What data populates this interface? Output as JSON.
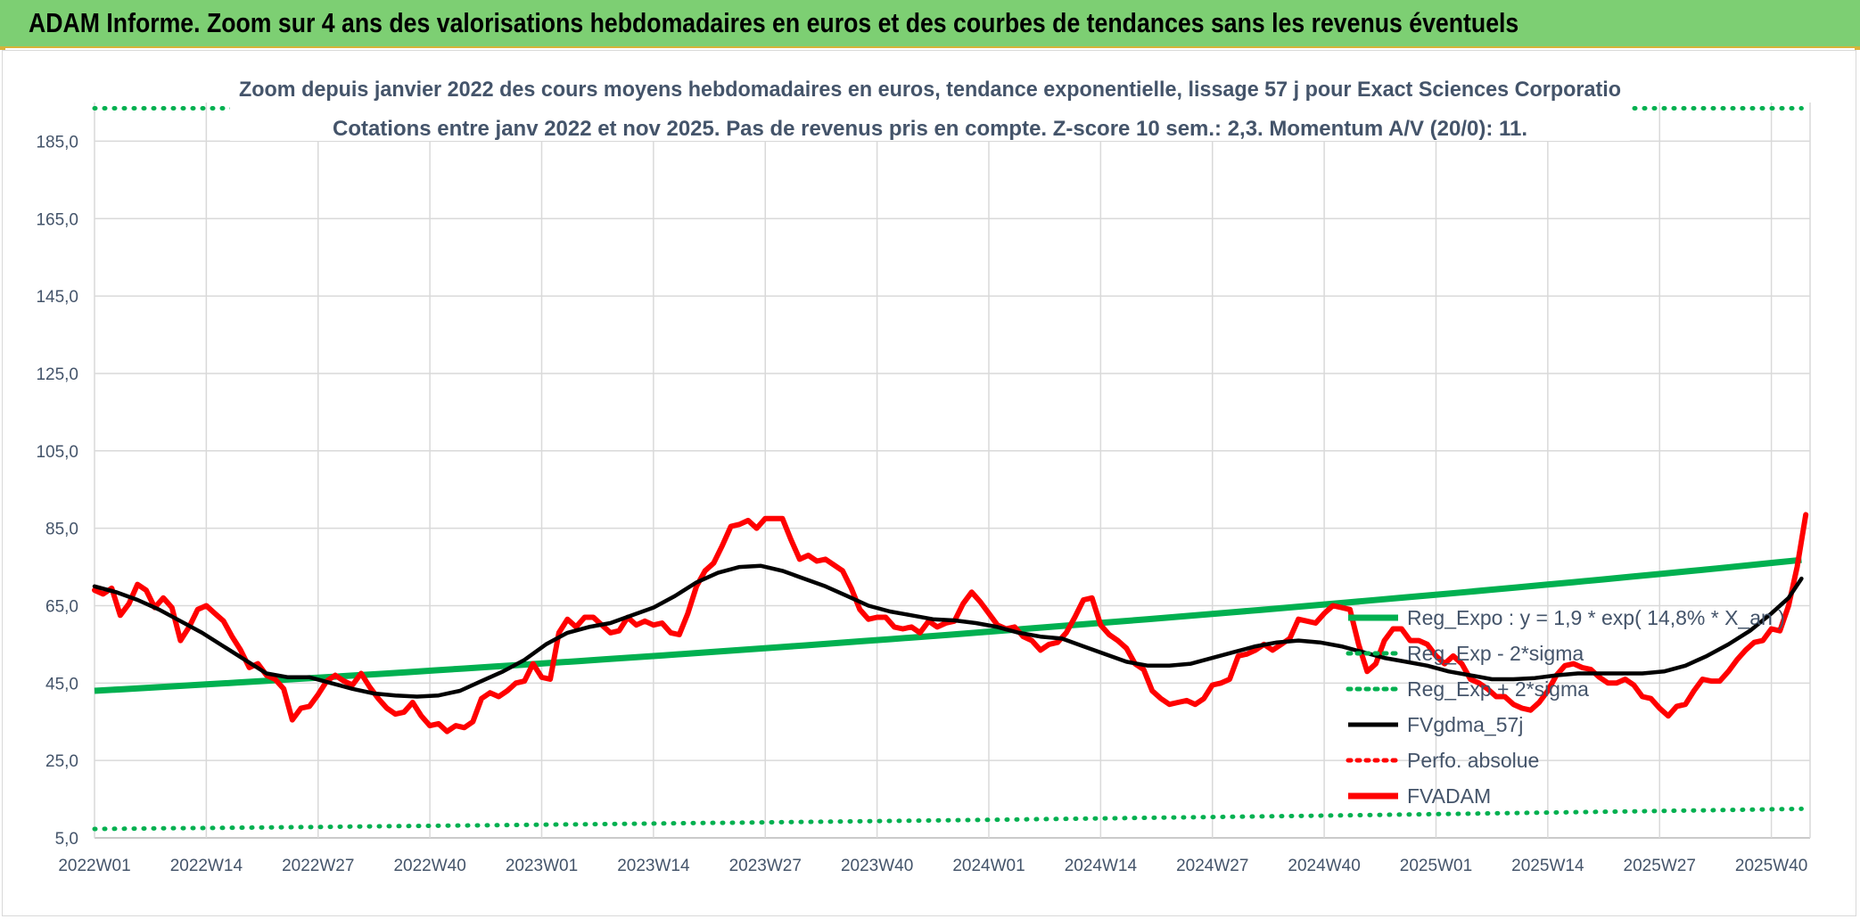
{
  "banner": {
    "title": "ADAM Informe. Zoom sur 4 ans des valorisations hebdomadaires en euros et des courbes de tendances sans les revenus éventuels"
  },
  "chart_data": {
    "type": "line",
    "title": "Zoom depuis janvier 2022 des cours moyens hebdomadaires en euros, tendance exponentielle, lissage 57 j pour Exact Sciences Corporatio",
    "subtitle": "Cotations entre janv 2022 et nov 2025. Pas de revenus pris en compte. Z-score 10 sem.: 2,3. Momentum A/V (20/0): 11.",
    "xlabel": "",
    "ylabel": "",
    "ylim": [
      5,
      195
    ],
    "yticks": [
      "5,0",
      "25,0",
      "45,0",
      "65,0",
      "85,0",
      "105,0",
      "125,0",
      "145,0",
      "165,0",
      "185,0"
    ],
    "ytick_values": [
      5,
      25,
      45,
      65,
      85,
      105,
      125,
      145,
      165,
      185
    ],
    "xticks": [
      "2022W01",
      "2022W14",
      "2022W27",
      "2022W40",
      "2023W01",
      "2023W14",
      "2023W27",
      "2023W40",
      "2024W01",
      "2024W14",
      "2024W27",
      "2024W40",
      "2025W01",
      "2025W14",
      "2025W27",
      "2025W40"
    ],
    "weeks": 206,
    "grid": true,
    "legend_position": "right",
    "colors": {
      "green": "#00b050",
      "red": "#ff0000",
      "black": "#000000",
      "grid": "#d9d9d9",
      "text": "#44546a"
    },
    "series": [
      {
        "name": "Reg_Expo : y = 1,9 * exp( 14,8% *  X_an )",
        "style": "green-thick",
        "start": 43.0,
        "end": 76.8
      },
      {
        "name": "Reg_Exp - 2*sigma",
        "style": "green-dotted",
        "start": 7.3,
        "end": 12.5
      },
      {
        "name": "Reg_Exp + 2*sigma",
        "style": "green-dotted",
        "start": 193.5,
        "end": 193.5
      },
      {
        "name": "FVgdma_57j",
        "style": "black",
        "points": [
          [
            0,
            70
          ],
          [
            5,
            68.5
          ],
          [
            10,
            66.5
          ],
          [
            15,
            64
          ],
          [
            20,
            61
          ],
          [
            25,
            58
          ],
          [
            30,
            54.5
          ],
          [
            35,
            51
          ],
          [
            40,
            47.5
          ],
          [
            45,
            46.5
          ],
          [
            50,
            46.5
          ],
          [
            55,
            45
          ],
          [
            60,
            43.5
          ],
          [
            65,
            42.3
          ],
          [
            70,
            41.8
          ],
          [
            75,
            41.5
          ],
          [
            80,
            41.8
          ],
          [
            85,
            43
          ],
          [
            90,
            45.5
          ],
          [
            95,
            48
          ],
          [
            100,
            51
          ],
          [
            105,
            55
          ],
          [
            110,
            58
          ],
          [
            115,
            59.5
          ],
          [
            120,
            60.5
          ],
          [
            125,
            62.5
          ],
          [
            130,
            64.5
          ],
          [
            135,
            67.5
          ],
          [
            140,
            71
          ],
          [
            145,
            73.5
          ],
          [
            150,
            75
          ],
          [
            155,
            75.3
          ],
          [
            160,
            74
          ],
          [
            165,
            72
          ],
          [
            170,
            70
          ],
          [
            175,
            67.5
          ],
          [
            180,
            65
          ],
          [
            185,
            63.5
          ],
          [
            190,
            62.5
          ],
          [
            195,
            61.5
          ],
          [
            200,
            61.2
          ],
          [
            205,
            60.5
          ],
          [
            210,
            59.5
          ],
          [
            215,
            58
          ],
          [
            220,
            57
          ],
          [
            225,
            56.5
          ],
          [
            230,
            54.5
          ],
          [
            235,
            52.5
          ],
          [
            240,
            50.5
          ],
          [
            245,
            49.5
          ],
          [
            250,
            49.5
          ],
          [
            255,
            50
          ],
          [
            260,
            51.5
          ],
          [
            265,
            53
          ],
          [
            270,
            54.5
          ],
          [
            275,
            55.5
          ],
          [
            280,
            56
          ],
          [
            285,
            55.5
          ],
          [
            290,
            54.5
          ],
          [
            295,
            53
          ],
          [
            300,
            51.5
          ],
          [
            305,
            50.5
          ],
          [
            310,
            49.5
          ],
          [
            315,
            48
          ],
          [
            320,
            47
          ],
          [
            325,
            46
          ],
          [
            330,
            46
          ],
          [
            335,
            46.3
          ],
          [
            340,
            47
          ],
          [
            345,
            47.5
          ],
          [
            350,
            47.5
          ],
          [
            355,
            47.5
          ],
          [
            360,
            47.5
          ],
          [
            365,
            48
          ],
          [
            370,
            49.5
          ],
          [
            375,
            52
          ],
          [
            380,
            55
          ],
          [
            385,
            58.5
          ],
          [
            390,
            63
          ],
          [
            394,
            67
          ],
          [
            397,
            72
          ]
        ]
      },
      {
        "name": "Perfo. absolue",
        "style": "red-dotted",
        "points": []
      },
      {
        "name": "FVADAM",
        "style": "red-thick",
        "points": [
          [
            0,
            69
          ],
          [
            2,
            68
          ],
          [
            4,
            69.5
          ],
          [
            6,
            62.5
          ],
          [
            8,
            65.5
          ],
          [
            10,
            70.5
          ],
          [
            12,
            69
          ],
          [
            14,
            64.5
          ],
          [
            16,
            67
          ],
          [
            18,
            64.5
          ],
          [
            20,
            56
          ],
          [
            22,
            59.5
          ],
          [
            24,
            64
          ],
          [
            26,
            65
          ],
          [
            28,
            63
          ],
          [
            30,
            61
          ],
          [
            32,
            57
          ],
          [
            34,
            53.5
          ],
          [
            36,
            49
          ],
          [
            38,
            50
          ],
          [
            40,
            47
          ],
          [
            42,
            46
          ],
          [
            44,
            43.5
          ],
          [
            46,
            35.5
          ],
          [
            48,
            38.5
          ],
          [
            50,
            39
          ],
          [
            52,
            42
          ],
          [
            54,
            45.5
          ],
          [
            56,
            47
          ],
          [
            58,
            45.5
          ],
          [
            60,
            44.5
          ],
          [
            62,
            47.5
          ],
          [
            64,
            44
          ],
          [
            66,
            41
          ],
          [
            68,
            38.5
          ],
          [
            70,
            37
          ],
          [
            72,
            37.5
          ],
          [
            74,
            40
          ],
          [
            76,
            36.5
          ],
          [
            78,
            34
          ],
          [
            80,
            34.5
          ],
          [
            82,
            32.5
          ],
          [
            84,
            34
          ],
          [
            86,
            33.5
          ],
          [
            88,
            35
          ],
          [
            90,
            41
          ],
          [
            92,
            42.5
          ],
          [
            94,
            41.5
          ],
          [
            96,
            43
          ],
          [
            98,
            45
          ],
          [
            100,
            45.5
          ],
          [
            102,
            50
          ],
          [
            104,
            46.5
          ],
          [
            106,
            46
          ],
          [
            108,
            58
          ],
          [
            110,
            61.5
          ],
          [
            112,
            59.5
          ],
          [
            114,
            62
          ],
          [
            116,
            62
          ],
          [
            118,
            60
          ],
          [
            120,
            58
          ],
          [
            122,
            58.5
          ],
          [
            124,
            62
          ],
          [
            126,
            60
          ],
          [
            128,
            61
          ],
          [
            130,
            60
          ],
          [
            132,
            60.5
          ],
          [
            134,
            58
          ],
          [
            136,
            57.5
          ],
          [
            138,
            63
          ],
          [
            140,
            70
          ],
          [
            142,
            74
          ],
          [
            144,
            76
          ],
          [
            146,
            80.5
          ],
          [
            148,
            85.5
          ],
          [
            150,
            86
          ],
          [
            152,
            87
          ],
          [
            154,
            85
          ],
          [
            156,
            87.5
          ],
          [
            158,
            87.5
          ],
          [
            160,
            87.5
          ],
          [
            162,
            82
          ],
          [
            164,
            77
          ],
          [
            166,
            78
          ],
          [
            168,
            76.5
          ],
          [
            170,
            77
          ],
          [
            172,
            75.5
          ],
          [
            174,
            74
          ],
          [
            176,
            69.5
          ],
          [
            178,
            64
          ],
          [
            180,
            61.5
          ],
          [
            182,
            62
          ],
          [
            184,
            62
          ],
          [
            186,
            59.5
          ],
          [
            188,
            59
          ],
          [
            190,
            59.5
          ],
          [
            192,
            58
          ],
          [
            194,
            61
          ],
          [
            196,
            59.5
          ],
          [
            198,
            60.5
          ],
          [
            200,
            61
          ],
          [
            202,
            65.5
          ],
          [
            204,
            68.5
          ],
          [
            206,
            66
          ],
          [
            208,
            63
          ],
          [
            210,
            60
          ],
          [
            212,
            59
          ],
          [
            214,
            59.5
          ],
          [
            216,
            57
          ],
          [
            218,
            56
          ],
          [
            220,
            53.5
          ],
          [
            222,
            55
          ],
          [
            224,
            55.5
          ],
          [
            226,
            58
          ],
          [
            228,
            62
          ],
          [
            230,
            66.5
          ],
          [
            232,
            67
          ],
          [
            234,
            60
          ],
          [
            236,
            57.5
          ],
          [
            238,
            56
          ],
          [
            240,
            54
          ],
          [
            242,
            50
          ],
          [
            244,
            48.5
          ],
          [
            246,
            43
          ],
          [
            248,
            41
          ],
          [
            250,
            39.5
          ],
          [
            252,
            40
          ],
          [
            254,
            40.5
          ],
          [
            256,
            39.5
          ],
          [
            258,
            41
          ],
          [
            260,
            44.5
          ],
          [
            262,
            45
          ],
          [
            264,
            46
          ],
          [
            266,
            52
          ],
          [
            268,
            52.5
          ],
          [
            270,
            53.5
          ],
          [
            272,
            55
          ],
          [
            274,
            53.5
          ],
          [
            276,
            55
          ],
          [
            278,
            56.5
          ],
          [
            280,
            61.5
          ],
          [
            282,
            61
          ],
          [
            284,
            60.5
          ],
          [
            286,
            63
          ],
          [
            288,
            65
          ],
          [
            290,
            64.5
          ],
          [
            292,
            64
          ],
          [
            294,
            55
          ],
          [
            296,
            48
          ],
          [
            298,
            50
          ],
          [
            300,
            56
          ],
          [
            302,
            59
          ],
          [
            304,
            59
          ],
          [
            306,
            56
          ],
          [
            308,
            56
          ],
          [
            310,
            55
          ],
          [
            312,
            52
          ],
          [
            314,
            50
          ],
          [
            316,
            52
          ],
          [
            318,
            50
          ],
          [
            320,
            46
          ],
          [
            322,
            45
          ],
          [
            324,
            43.5
          ],
          [
            326,
            41.5
          ],
          [
            328,
            41.5
          ],
          [
            330,
            39.5
          ],
          [
            332,
            38.5
          ],
          [
            334,
            38
          ],
          [
            336,
            40
          ],
          [
            338,
            43
          ],
          [
            340,
            47
          ],
          [
            342,
            49.5
          ],
          [
            344,
            50
          ],
          [
            346,
            49
          ],
          [
            348,
            48.5
          ],
          [
            350,
            46.5
          ],
          [
            352,
            45
          ],
          [
            354,
            45
          ],
          [
            356,
            46
          ],
          [
            358,
            44.5
          ],
          [
            360,
            41.5
          ],
          [
            362,
            41
          ],
          [
            364,
            38.5
          ],
          [
            366,
            36.5
          ],
          [
            368,
            39
          ],
          [
            370,
            39.5
          ],
          [
            372,
            43
          ],
          [
            374,
            46
          ],
          [
            376,
            45.5
          ],
          [
            378,
            45.5
          ],
          [
            380,
            48
          ],
          [
            382,
            51
          ],
          [
            384,
            53.5
          ],
          [
            386,
            55.5
          ],
          [
            388,
            56
          ],
          [
            390,
            59
          ],
          [
            392,
            58.5
          ],
          [
            394,
            65
          ],
          [
            396,
            75
          ],
          [
            398,
            88.5
          ]
        ]
      }
    ]
  }
}
